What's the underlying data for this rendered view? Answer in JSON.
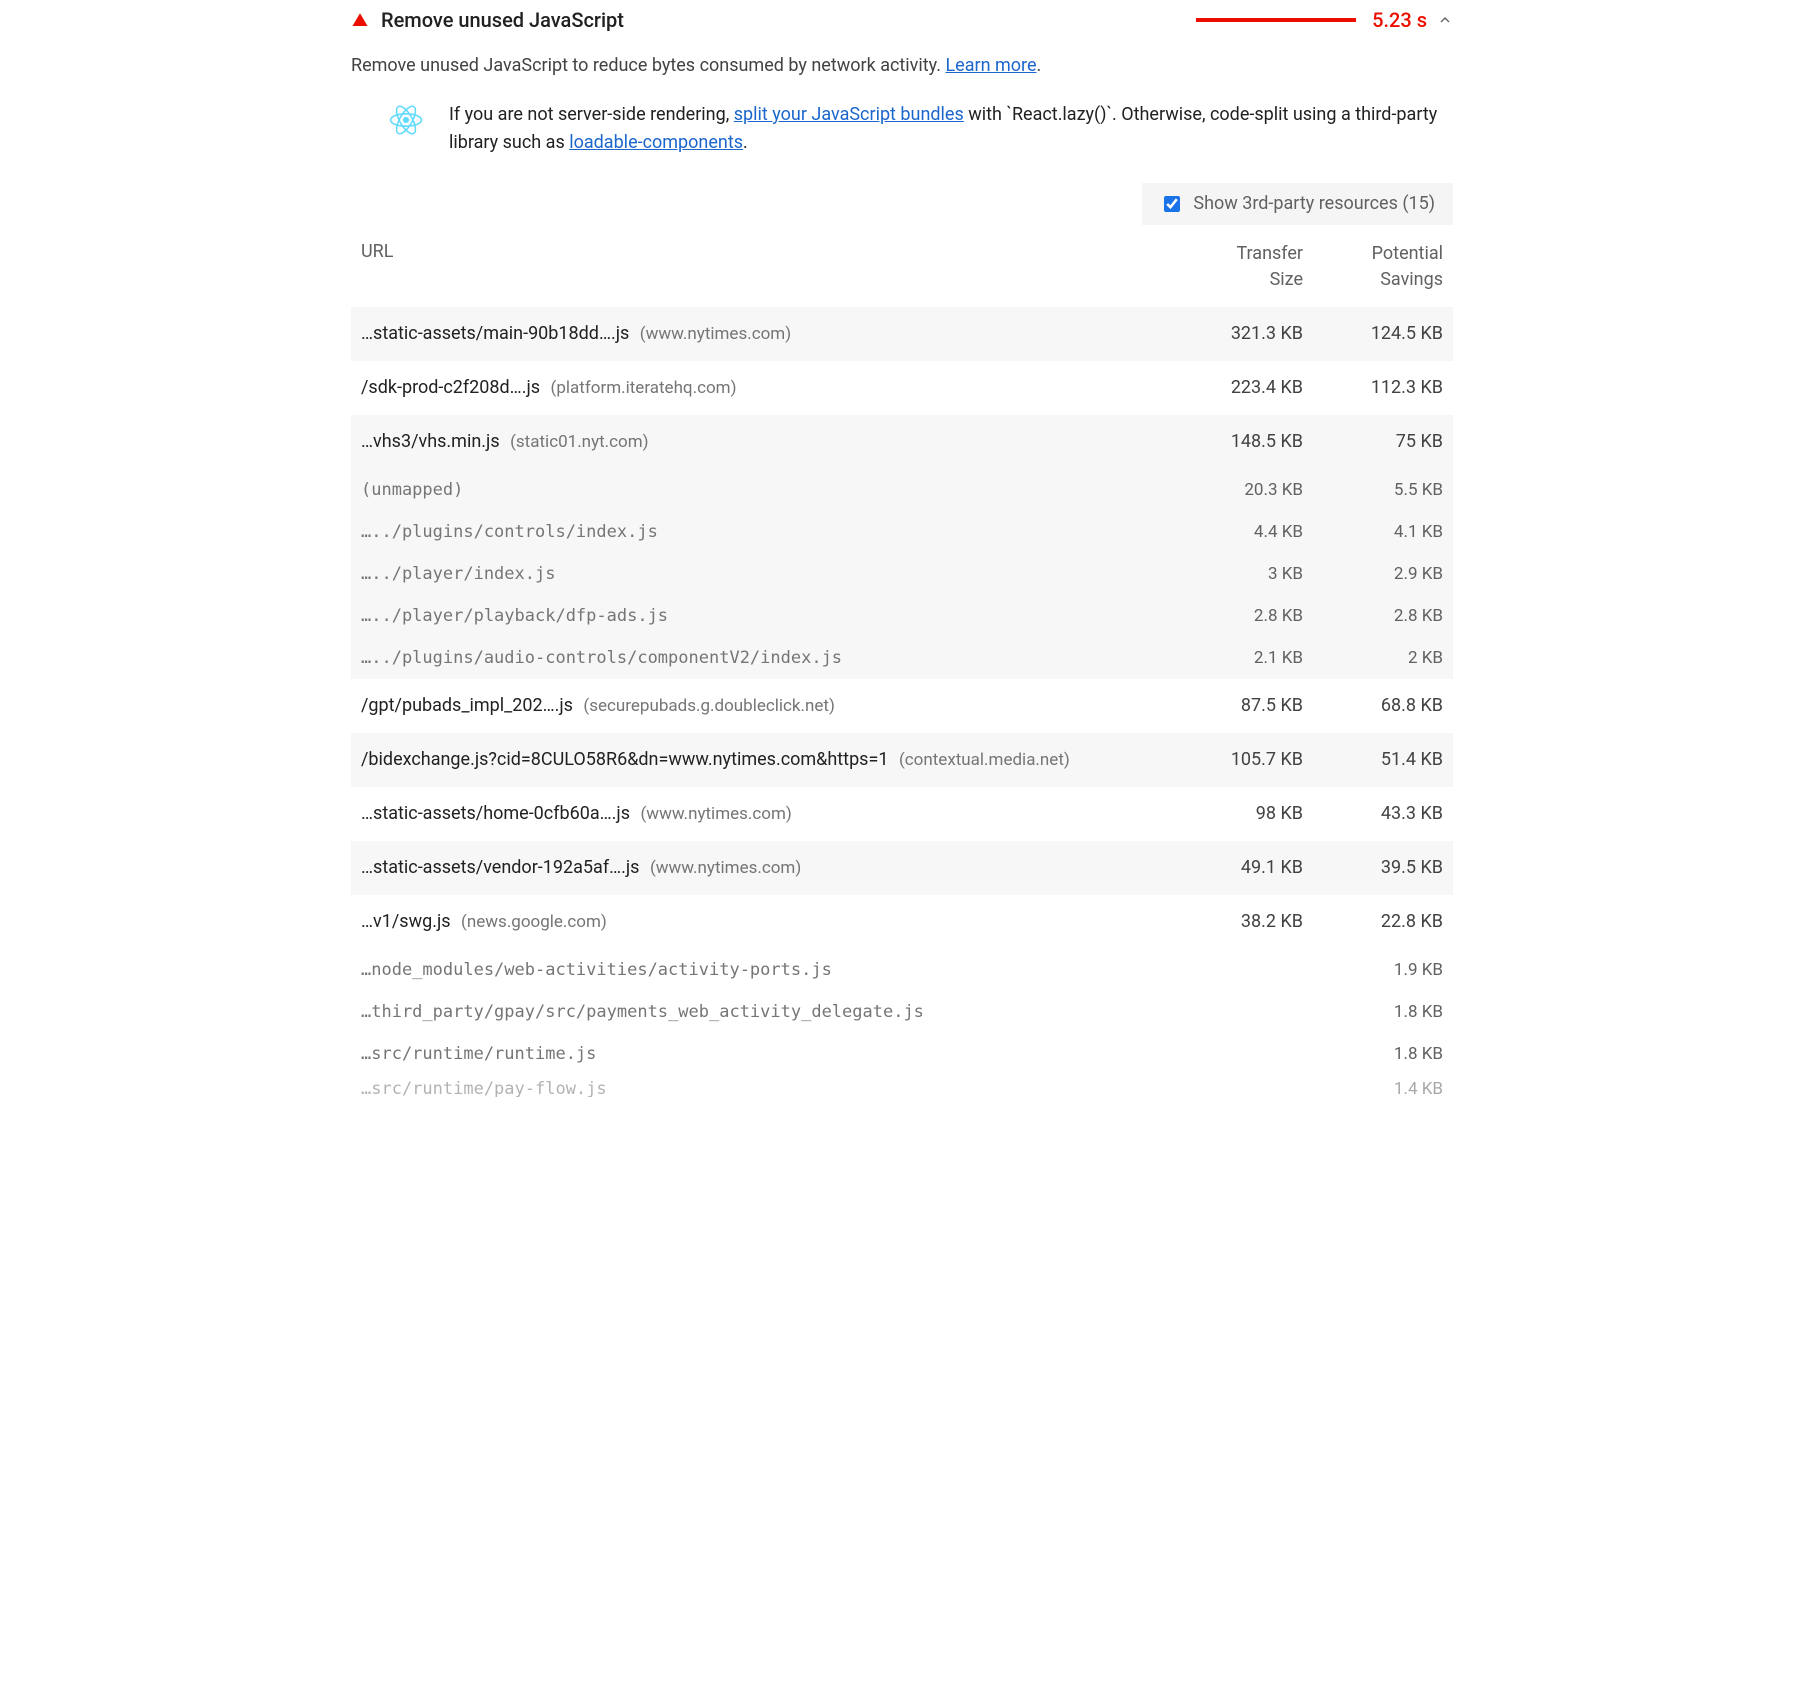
{
  "header": {
    "title": "Remove unused JavaScript",
    "metric_value": "5.23 s",
    "metric_color": "#eb0e00"
  },
  "description": {
    "lead": "Remove unused JavaScript to reduce bytes consumed by network activity. ",
    "learn_more": "Learn more",
    "trail": "."
  },
  "react_tip": {
    "pre": "If you are not server-side rendering, ",
    "link1": "split your JavaScript bundles",
    "mid": " with `React.lazy()`. Otherwise, code-split using a third-party library such as ",
    "link2": "loadable-components",
    "post": "."
  },
  "third_party_toggle": {
    "label": "Show 3rd-party resources (15)",
    "checked": true
  },
  "columns": {
    "url": "URL",
    "transfer": "Transfer Size",
    "savings": "Potential Savings"
  },
  "rows": [
    {
      "kind": "main",
      "shade": true,
      "url": "…static-assets/main-90b18dd….js",
      "domain": "(www.nytimes.com)",
      "size": "321.3 KB",
      "save": "124.5 KB"
    },
    {
      "kind": "main",
      "shade": false,
      "url": "/sdk-prod-c2f208d….js",
      "domain": "(platform.iteratehq.com)",
      "size": "223.4 KB",
      "save": "112.3 KB"
    },
    {
      "kind": "main",
      "shade": true,
      "url": "…vhs3/vhs.min.js",
      "domain": "(static01.nyt.com)",
      "size": "148.5 KB",
      "save": "75 KB"
    },
    {
      "kind": "sub",
      "url": "(unmapped)",
      "size": "20.3 KB",
      "save": "5.5 KB"
    },
    {
      "kind": "sub",
      "url": "…../plugins/controls/index.js",
      "size": "4.4 KB",
      "save": "4.1 KB"
    },
    {
      "kind": "sub",
      "url": "…../player/index.js",
      "size": "3 KB",
      "save": "2.9 KB"
    },
    {
      "kind": "sub",
      "url": "…../player/playback/dfp-ads.js",
      "size": "2.8 KB",
      "save": "2.8 KB"
    },
    {
      "kind": "sub",
      "url": "…../plugins/audio-controls/componentV2/index.js",
      "size": "2.1 KB",
      "save": "2 KB"
    },
    {
      "kind": "main",
      "shade": false,
      "url": "/gpt/pubads_impl_202….js",
      "domain": "(securepubads.g.doubleclick.net)",
      "size": "87.5 KB",
      "save": "68.8 KB"
    },
    {
      "kind": "main",
      "shade": true,
      "url": "/bidexchange.js?cid=8CULO58R6&dn=www.nytimes.com&https=1",
      "domain": "(contextual.media.net)",
      "size": "105.7 KB",
      "save": "51.4 KB"
    },
    {
      "kind": "main",
      "shade": false,
      "url": "…static-assets/home-0cfb60a….js",
      "domain": "(www.nytimes.com)",
      "size": "98 KB",
      "save": "43.3 KB"
    },
    {
      "kind": "main",
      "shade": true,
      "url": "…static-assets/vendor-192a5af….js",
      "domain": "(www.nytimes.com)",
      "size": "49.1 KB",
      "save": "39.5 KB"
    },
    {
      "kind": "main",
      "shade": false,
      "url": "…v1/swg.js",
      "domain": "(news.google.com)",
      "size": "38.2 KB",
      "save": "22.8 KB"
    },
    {
      "kind": "tail",
      "url": "…node_modules/web-activities/activity-ports.js",
      "size": "",
      "save": "1.9 KB"
    },
    {
      "kind": "tail",
      "url": "…third_party/gpay/src/payments_web_activity_delegate.js",
      "size": "",
      "save": "1.8 KB"
    },
    {
      "kind": "tail",
      "url": "…src/runtime/runtime.js",
      "size": "",
      "save": "1.8 KB"
    },
    {
      "kind": "tail",
      "url": "…src/runtime/pay-flow.js",
      "size": "",
      "save": "1.4 KB"
    }
  ]
}
